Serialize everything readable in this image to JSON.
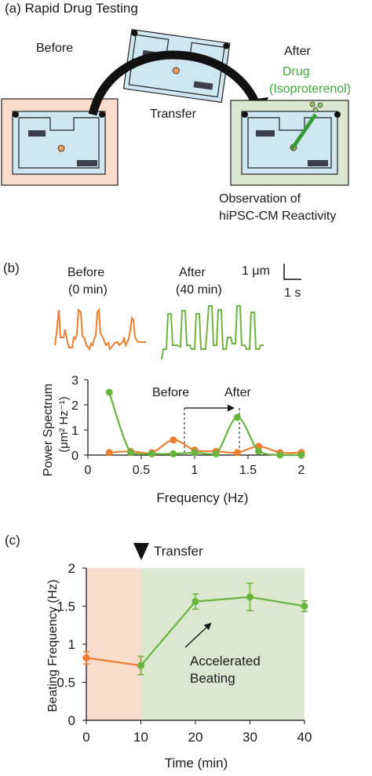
{
  "panel_a": {
    "label": "(a) Rapid Drug Testing",
    "before": "Before",
    "after": "After",
    "transfer": "Transfer",
    "drug_line1": "Drug",
    "drug_line2": "(Isoproterenol)",
    "observation_line1": "Observation of",
    "observation_line2": "hiPSC-CM Reactivity",
    "colors": {
      "before_bg": "#f9dccb",
      "after_bg": "#dbe8cf",
      "chip": "#cfe7f2",
      "drug": "#3ea83e"
    }
  },
  "panel_b": {
    "label": "(b)",
    "trace_before_line1": "Before",
    "trace_before_line2": "(0 min)",
    "trace_after_line1": "After",
    "trace_after_line2": "(40 min)",
    "scale_um": "1 μm",
    "scale_s": "1 s",
    "annotation_before": "Before",
    "annotation_after": "After",
    "ylabel_line1": "Power Spectrum",
    "ylabel_line2": "(μm² Hz⁻¹)",
    "xlabel": "Frequency (Hz)"
  },
  "panel_c": {
    "label": "(c)",
    "transfer": "Transfer",
    "annotation_line1": "Accelerated",
    "annotation_line2": "Beating",
    "ylabel": "Beating Frequency (Hz)",
    "xlabel": "Time (min)"
  },
  "chart_data": [
    {
      "type": "line",
      "x": [
        0.2,
        0.4,
        0.6,
        0.8,
        1.0,
        1.2,
        1.4,
        1.6,
        1.8,
        2.0
      ],
      "series": [
        {
          "name": "Before",
          "color": "#ef7d2d",
          "values": [
            0.1,
            0.15,
            0.1,
            0.6,
            0.2,
            0.15,
            0.1,
            0.35,
            0.1,
            0.1
          ]
        },
        {
          "name": "After",
          "color": "#6ab43e",
          "values": [
            2.5,
            0.1,
            0.05,
            0.05,
            0.1,
            0.05,
            1.5,
            0.15,
            0.0,
            0.0
          ]
        }
      ],
      "xlim": [
        0,
        2
      ],
      "ylim": [
        0,
        3
      ],
      "xticks": [
        0,
        0.5,
        1,
        1.5,
        2
      ],
      "xtick_labels": [
        "0",
        "0.5",
        "1",
        "1.5",
        "2"
      ],
      "yticks": [
        0,
        1,
        2,
        3
      ],
      "ytick_labels": [
        "0",
        "1",
        "2",
        "3"
      ]
    },
    {
      "type": "line",
      "x": [
        0,
        10,
        20,
        30,
        40
      ],
      "series": [
        {
          "color": "#ef7d2d",
          "x": [
            0,
            10
          ],
          "values": [
            0.82,
            0.72
          ],
          "err": [
            0.08,
            0.12
          ]
        },
        {
          "color": "#6ab43e",
          "x": [
            10,
            20,
            30,
            40
          ],
          "values": [
            0.72,
            1.56,
            1.62,
            1.5
          ],
          "err": [
            0.12,
            0.1,
            0.18,
            0.07
          ]
        }
      ],
      "xlim": [
        0,
        40
      ],
      "ylim": [
        0,
        2
      ],
      "xticks": [
        0,
        10,
        20,
        30,
        40
      ],
      "xtick_labels": [
        "0",
        "10",
        "20",
        "30",
        "40"
      ],
      "yticks": [
        0,
        0.5,
        1,
        1.5,
        2
      ],
      "ytick_labels": [
        "0",
        "0.5",
        "1",
        "1.5",
        "2"
      ],
      "shaded_regions": [
        {
          "from": 0,
          "to": 10,
          "color": "#f9dccb"
        },
        {
          "from": 10,
          "to": 40,
          "color": "#dbe8cf"
        }
      ]
    }
  ]
}
